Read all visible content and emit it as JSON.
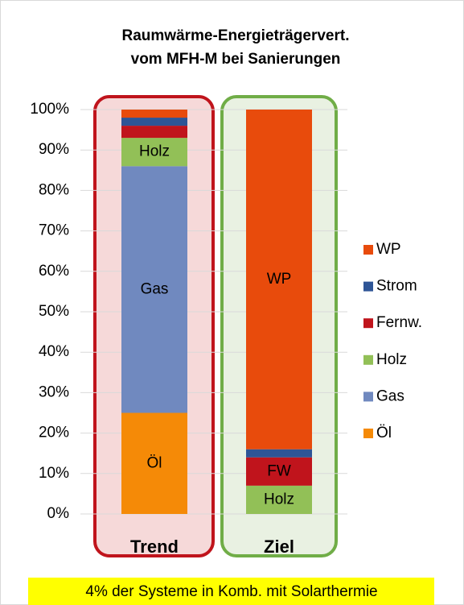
{
  "chart_data": {
    "type": "stacked_bar",
    "title": [
      "Raumwärme-Energieträgervert.",
      "vom MFH-M bei Sanierungen"
    ],
    "categories": [
      "Trend",
      "Ziel"
    ],
    "category_colors": [
      "#c0141c",
      "#70ad47"
    ],
    "category_fills": [
      "#f6d9d9",
      "#e9f1e2"
    ],
    "series": [
      {
        "name": "Öl",
        "color": "#f58a07",
        "values": [
          25,
          0
        ],
        "segment_labels": [
          "Öl",
          null
        ]
      },
      {
        "name": "Gas",
        "color": "#7089bf",
        "values": [
          61,
          0
        ],
        "segment_labels": [
          "Gas",
          null
        ]
      },
      {
        "name": "Holz",
        "color": "#92c057",
        "values": [
          7,
          7
        ],
        "segment_labels": [
          "Holz",
          "Holz"
        ]
      },
      {
        "name": "Fernw.",
        "color": "#c0141c",
        "values": [
          3,
          7
        ],
        "segment_labels": [
          null,
          "FW"
        ]
      },
      {
        "name": "Strom",
        "color": "#2e5596",
        "values": [
          2,
          2
        ],
        "segment_labels": [
          null,
          null
        ]
      },
      {
        "name": "WP",
        "color": "#e84b0c",
        "values": [
          2,
          84
        ],
        "segment_labels": [
          null,
          "WP"
        ]
      }
    ],
    "ylim": [
      0,
      100
    ],
    "yticks": [
      {
        "value": 0,
        "label": "0%"
      },
      {
        "value": 10,
        "label": "10%"
      },
      {
        "value": 20,
        "label": "20%"
      },
      {
        "value": 30,
        "label": "30%"
      },
      {
        "value": 40,
        "label": "40%"
      },
      {
        "value": 50,
        "label": "50%"
      },
      {
        "value": 60,
        "label": "60%"
      },
      {
        "value": 70,
        "label": "70%"
      },
      {
        "value": 80,
        "label": "80%"
      },
      {
        "value": 90,
        "label": "90%"
      },
      {
        "value": 100,
        "label": "100%"
      }
    ],
    "grid": true,
    "legend": "right",
    "footnote": "4% der Systeme in Komb. mit Solarthermie"
  }
}
